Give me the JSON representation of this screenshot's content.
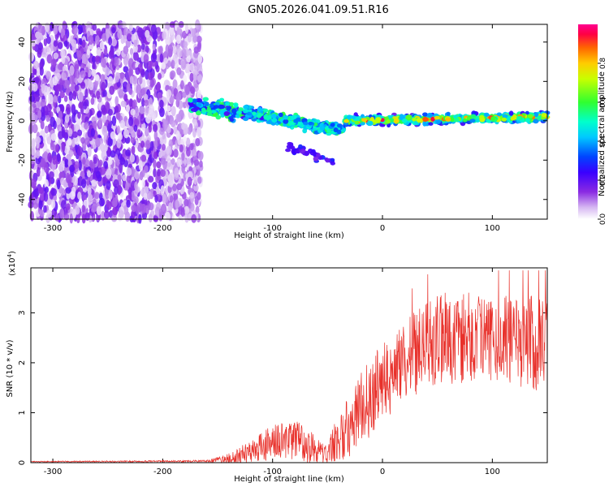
{
  "figure_title": "GN05.2026.041.09.51.R16",
  "chart_data": [
    {
      "type": "heatmap",
      "title": "GN05.2026.041.09.51.R16",
      "xlabel": "Height of straight line (km)",
      "ylabel": "Frequency (Hz)",
      "xlim": [
        -320,
        150
      ],
      "ylim": [
        -50,
        49
      ],
      "xticks": [
        -300,
        -200,
        -100,
        0,
        100
      ],
      "yticks": [
        -40,
        -20,
        0,
        20,
        40
      ],
      "colorbar": {
        "label": "Normalized spectral amplitude",
        "range": [
          0,
          1
        ],
        "ticks": [
          0.0,
          0.2,
          0.4,
          0.6,
          0.8
        ],
        "tick_labels": [
          "0.0",
          "0.2",
          "0.4",
          "0.6",
          "0.8"
        ]
      },
      "regions": [
        {
          "name": "noise",
          "x_range": [
            -320,
            -165
          ],
          "freq_range": [
            -50,
            49
          ],
          "amplitude_range": [
            0.02,
            0.2
          ]
        },
        {
          "name": "signal-onset",
          "x_range": [
            -175,
            -100
          ],
          "freq_center": [
            8,
            2
          ],
          "width_hz": 10,
          "amplitude_range": [
            0.2,
            0.6
          ]
        },
        {
          "name": "signal-dip",
          "x_range": [
            -100,
            -35
          ],
          "freq_center": [
            2,
            -5
          ],
          "width_hz": 8,
          "amplitude_range": [
            0.3,
            0.6
          ]
        },
        {
          "name": "tail",
          "x_range": [
            -95,
            -45
          ],
          "freq_center": [
            -12,
            -20
          ],
          "amplitude_range": [
            0.15,
            0.3
          ]
        },
        {
          "name": "steady-line",
          "x_range": [
            -35,
            150
          ],
          "freq_center": [
            0,
            2
          ],
          "width_hz": 6,
          "amplitude_range": [
            0.5,
            0.98
          ]
        }
      ]
    },
    {
      "type": "line",
      "xlabel": "Height of straight line (km)",
      "ylabel": "SNR (10 * v/v)",
      "y_scale_label": "(x10",
      "y_scale_exponent": "4",
      "y_scale_close": ")",
      "xlim": [
        -320,
        150
      ],
      "ylim": [
        0,
        3.9
      ],
      "xticks": [
        -300,
        -200,
        -100,
        0,
        100
      ],
      "yticks": [
        0,
        1,
        2,
        3
      ],
      "color": "#e8302a",
      "series": [
        {
          "name": "SNR",
          "envelope": {
            "x": [
              -320,
              -160,
              -140,
              -120,
              -100,
              -80,
              -70,
              -60,
              -50,
              -42,
              -35,
              -28,
              -20,
              -10,
              0,
              15,
              30,
              45,
              60,
              80,
              100,
              120,
              140,
              150
            ],
            "mean": [
              0.02,
              0.03,
              0.08,
              0.22,
              0.4,
              0.45,
              0.35,
              0.25,
              0.15,
              0.45,
              0.6,
              0.8,
              1.1,
              1.3,
              1.6,
              1.9,
              2.2,
              2.4,
              2.5,
              2.5,
              2.45,
              2.45,
              2.4,
              2.35
            ],
            "spread": [
              0.01,
              0.02,
              0.1,
              0.25,
              0.35,
              0.4,
              0.4,
              0.25,
              0.2,
              0.45,
              0.55,
              0.65,
              0.7,
              0.8,
              0.8,
              0.8,
              0.85,
              0.9,
              0.95,
              0.9,
              0.9,
              0.9,
              0.95,
              0.95
            ]
          },
          "peak_y": 3.85,
          "min_y": 0.0
        }
      ]
    }
  ]
}
